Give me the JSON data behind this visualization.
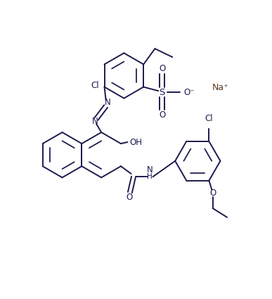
{
  "line_color": "#1a1a4e",
  "bg_color": "#ffffff",
  "figsize": [
    3.87,
    4.25
  ],
  "dpi": 100,
  "na_label": "Na⁺",
  "cl_label1": "Cl",
  "cl_label2": "Cl",
  "oh_label": "OH",
  "nh_label": "H",
  "o_label": "O",
  "o_ether_label": "O",
  "s_label": "S",
  "n_label": "N",
  "lw": 1.4,
  "ring_r": 0.75
}
